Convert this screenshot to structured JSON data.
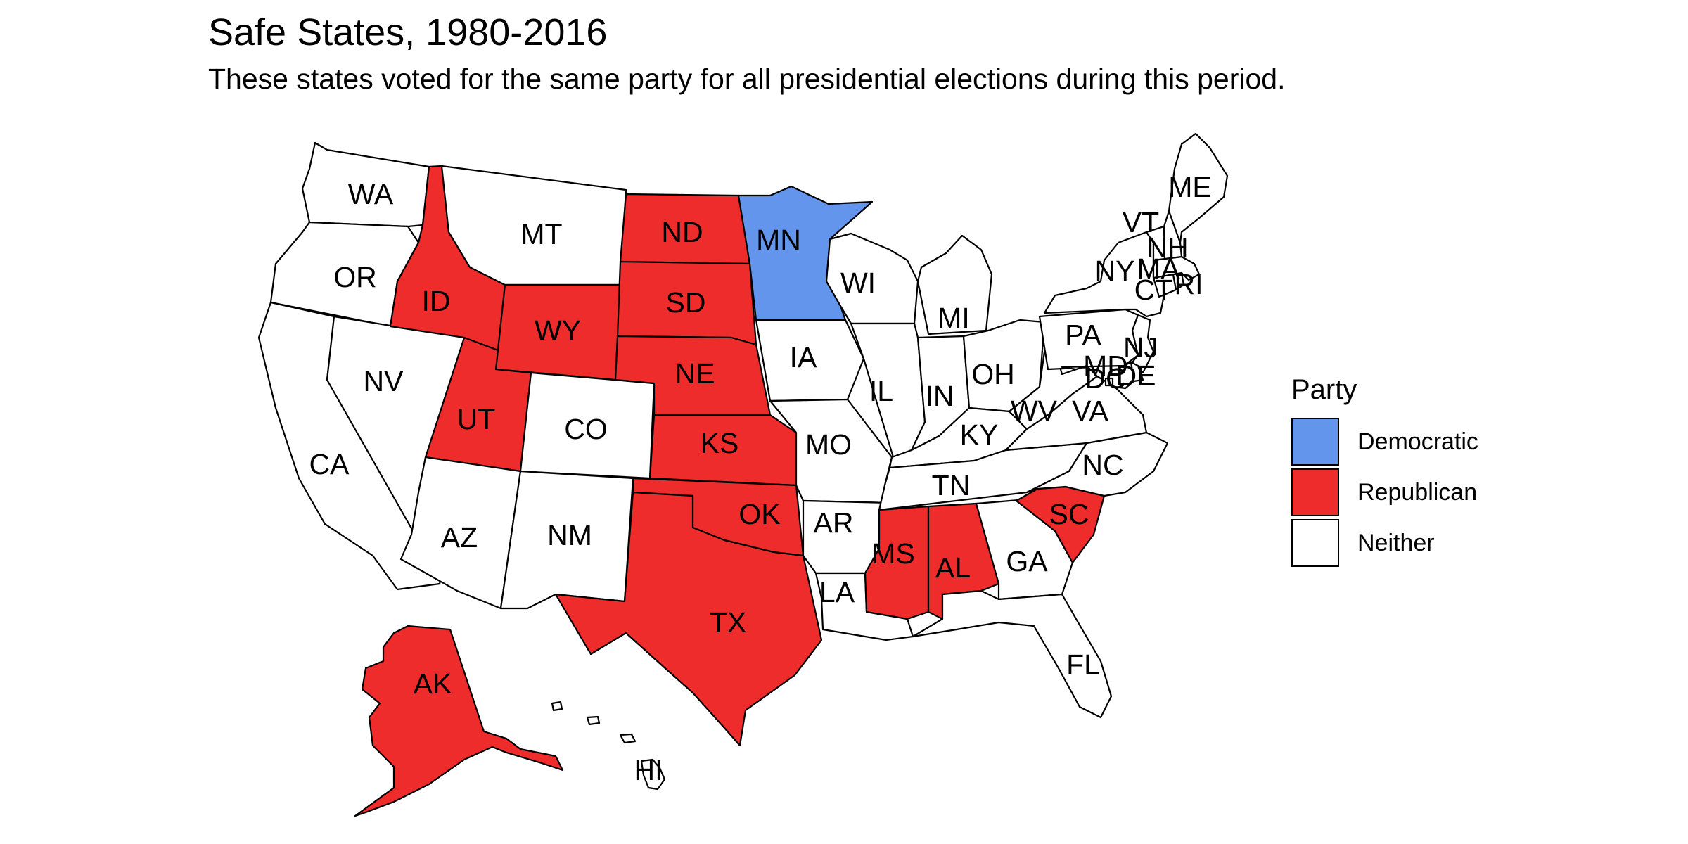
{
  "title": "Safe States, 1980-2016",
  "subtitle": "These states voted for the same party for all presidential elections during this period.",
  "legend": {
    "title": "Party",
    "items": [
      {
        "label": "Democratic",
        "color": "#6495ED"
      },
      {
        "label": "Republican",
        "color": "#EE2C2C"
      },
      {
        "label": "Neither",
        "color": "#FFFFFF"
      }
    ]
  },
  "states": {
    "WA": {
      "abbr": "WA",
      "party": "Neither"
    },
    "OR": {
      "abbr": "OR",
      "party": "Neither"
    },
    "CA": {
      "abbr": "CA",
      "party": "Neither"
    },
    "NV": {
      "abbr": "NV",
      "party": "Neither"
    },
    "ID": {
      "abbr": "ID",
      "party": "Republican"
    },
    "MT": {
      "abbr": "MT",
      "party": "Neither"
    },
    "WY": {
      "abbr": "WY",
      "party": "Republican"
    },
    "UT": {
      "abbr": "UT",
      "party": "Republican"
    },
    "AZ": {
      "abbr": "AZ",
      "party": "Neither"
    },
    "CO": {
      "abbr": "CO",
      "party": "Neither"
    },
    "NM": {
      "abbr": "NM",
      "party": "Neither"
    },
    "ND": {
      "abbr": "ND",
      "party": "Republican"
    },
    "SD": {
      "abbr": "SD",
      "party": "Republican"
    },
    "NE": {
      "abbr": "NE",
      "party": "Republican"
    },
    "KS": {
      "abbr": "KS",
      "party": "Republican"
    },
    "OK": {
      "abbr": "OK",
      "party": "Republican"
    },
    "TX": {
      "abbr": "TX",
      "party": "Republican"
    },
    "MN": {
      "abbr": "MN",
      "party": "Democratic"
    },
    "IA": {
      "abbr": "IA",
      "party": "Neither"
    },
    "MO": {
      "abbr": "MO",
      "party": "Neither"
    },
    "AR": {
      "abbr": "AR",
      "party": "Neither"
    },
    "LA": {
      "abbr": "LA",
      "party": "Neither"
    },
    "WI": {
      "abbr": "WI",
      "party": "Neither"
    },
    "IL": {
      "abbr": "IL",
      "party": "Neither"
    },
    "MI": {
      "abbr": "MI",
      "party": "Neither"
    },
    "IN": {
      "abbr": "IN",
      "party": "Neither"
    },
    "OH": {
      "abbr": "OH",
      "party": "Neither"
    },
    "KY": {
      "abbr": "KY",
      "party": "Neither"
    },
    "TN": {
      "abbr": "TN",
      "party": "Neither"
    },
    "MS": {
      "abbr": "MS",
      "party": "Republican"
    },
    "AL": {
      "abbr": "AL",
      "party": "Republican"
    },
    "GA": {
      "abbr": "GA",
      "party": "Neither"
    },
    "FL": {
      "abbr": "FL",
      "party": "Neither"
    },
    "SC": {
      "abbr": "SC",
      "party": "Republican"
    },
    "NC": {
      "abbr": "NC",
      "party": "Neither"
    },
    "VA": {
      "abbr": "VA",
      "party": "Neither"
    },
    "WV": {
      "abbr": "WV",
      "party": "Neither"
    },
    "PA": {
      "abbr": "PA",
      "party": "Neither"
    },
    "NY": {
      "abbr": "NY",
      "party": "Neither"
    },
    "NJ": {
      "abbr": "NJ",
      "party": "Neither"
    },
    "DE": {
      "abbr": "DE",
      "party": "Neither"
    },
    "MD": {
      "abbr": "MD",
      "party": "Neither"
    },
    "DC": {
      "abbr": "DC",
      "party": "Neither"
    },
    "CT": {
      "abbr": "CT",
      "party": "Neither"
    },
    "RI": {
      "abbr": "RI",
      "party": "Neither"
    },
    "MA": {
      "abbr": "MA",
      "party": "Neither"
    },
    "VT": {
      "abbr": "VT",
      "party": "Neither"
    },
    "NH": {
      "abbr": "NH",
      "party": "Neither"
    },
    "ME": {
      "abbr": "ME",
      "party": "Neither"
    },
    "AK": {
      "abbr": "AK",
      "party": "Republican"
    },
    "HI": {
      "abbr": "HI",
      "party": "Neither"
    }
  }
}
